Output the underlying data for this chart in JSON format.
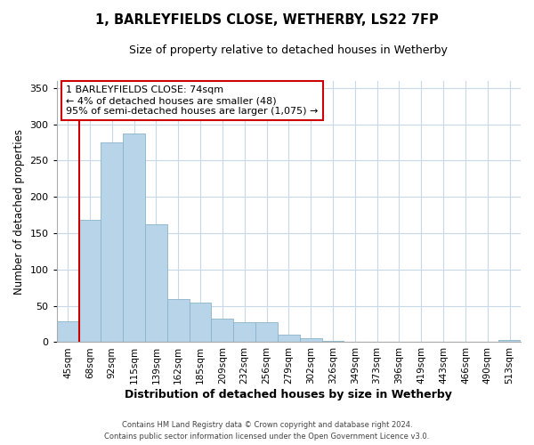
{
  "title": "1, BARLEYFIELDS CLOSE, WETHERBY, LS22 7FP",
  "subtitle": "Size of property relative to detached houses in Wetherby",
  "xlabel": "Distribution of detached houses by size in Wetherby",
  "ylabel": "Number of detached properties",
  "bar_labels": [
    "45sqm",
    "68sqm",
    "92sqm",
    "115sqm",
    "139sqm",
    "162sqm",
    "185sqm",
    "209sqm",
    "232sqm",
    "256sqm",
    "279sqm",
    "302sqm",
    "326sqm",
    "349sqm",
    "373sqm",
    "396sqm",
    "419sqm",
    "443sqm",
    "466sqm",
    "490sqm",
    "513sqm"
  ],
  "bar_values": [
    29,
    168,
    275,
    287,
    162,
    59,
    54,
    33,
    27,
    27,
    10,
    5,
    2,
    0,
    1,
    0,
    0,
    0,
    0,
    0,
    3
  ],
  "bar_color": "#b8d4e8",
  "bar_edge_color": "#8ab4cc",
  "marker_bar_index": 1,
  "marker_color": "#cc0000",
  "annotation_title": "1 BARLEYFIELDS CLOSE: 74sqm",
  "annotation_line1": "← 4% of detached houses are smaller (48)",
  "annotation_line2": "95% of semi-detached houses are larger (1,075) →",
  "annotation_box_color": "#ffffff",
  "annotation_box_edgecolor": "#cc0000",
  "ylim": [
    0,
    360
  ],
  "yticks": [
    0,
    50,
    100,
    150,
    200,
    250,
    300,
    350
  ],
  "grid_color": "#c8d8e8",
  "footer_line1": "Contains HM Land Registry data © Crown copyright and database right 2024.",
  "footer_line2": "Contains public sector information licensed under the Open Government Licence v3.0.",
  "figsize": [
    6.0,
    5.0
  ],
  "dpi": 100
}
